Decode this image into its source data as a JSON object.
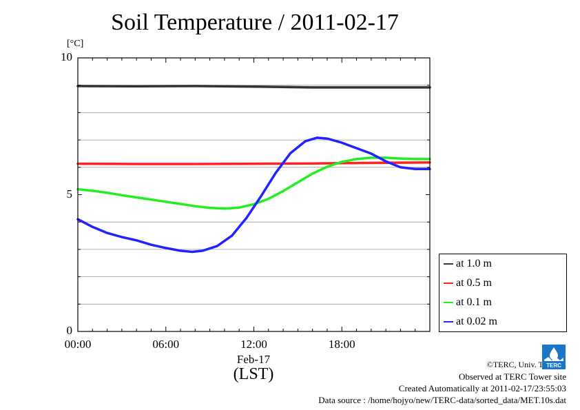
{
  "chart_data": {
    "type": "line",
    "title": "Soil Temperature / 2011-02-17",
    "ylabel": "[°C]",
    "xlabel": "(LST)",
    "x_date_label": "Feb-17",
    "xlim": [
      0,
      24
    ],
    "ylim": [
      0,
      10
    ],
    "y_ticks": [
      {
        "value": 0,
        "label": "0"
      },
      {
        "value": 5,
        "label": "5"
      },
      {
        "value": 10,
        "label": "10"
      }
    ],
    "y_gridlines": [
      1,
      2,
      3,
      4,
      6,
      7,
      8,
      9
    ],
    "x_ticks": [
      {
        "value": 0,
        "label": "00:00"
      },
      {
        "value": 6,
        "label": "06:00"
      },
      {
        "value": 12,
        "label": "12:00"
      },
      {
        "value": 18,
        "label": "18:00"
      }
    ],
    "grid": true,
    "legend_position": "bottom-right",
    "series": [
      {
        "name": "at 1.0 m",
        "color": "#333333",
        "points": [
          [
            0,
            8.97
          ],
          [
            4,
            8.96
          ],
          [
            8,
            8.97
          ],
          [
            12,
            8.95
          ],
          [
            16,
            8.92
          ],
          [
            20,
            8.92
          ],
          [
            24,
            8.92
          ]
        ]
      },
      {
        "name": "at 0.5 m",
        "color": "#ff2020",
        "points": [
          [
            0,
            6.13
          ],
          [
            4,
            6.12
          ],
          [
            8,
            6.12
          ],
          [
            12,
            6.13
          ],
          [
            16,
            6.14
          ],
          [
            20,
            6.16
          ],
          [
            24,
            6.18
          ]
        ]
      },
      {
        "name": "at 0.1 m",
        "color": "#22ee22",
        "points": [
          [
            0,
            5.2
          ],
          [
            1,
            5.14
          ],
          [
            2,
            5.07
          ],
          [
            3,
            4.98
          ],
          [
            4,
            4.9
          ],
          [
            5,
            4.82
          ],
          [
            6,
            4.74
          ],
          [
            7,
            4.66
          ],
          [
            8,
            4.58
          ],
          [
            9,
            4.52
          ],
          [
            10,
            4.49
          ],
          [
            11,
            4.53
          ],
          [
            12,
            4.65
          ],
          [
            13,
            4.85
          ],
          [
            14,
            5.13
          ],
          [
            15,
            5.45
          ],
          [
            16,
            5.77
          ],
          [
            17,
            6.02
          ],
          [
            18,
            6.2
          ],
          [
            19,
            6.3
          ],
          [
            20,
            6.35
          ],
          [
            21,
            6.35
          ],
          [
            22,
            6.32
          ],
          [
            23,
            6.3
          ],
          [
            24,
            6.3
          ]
        ]
      },
      {
        "name": "at 0.02 m",
        "color": "#2222ff",
        "points": [
          [
            0,
            4.1
          ],
          [
            1,
            3.82
          ],
          [
            2,
            3.6
          ],
          [
            3,
            3.45
          ],
          [
            4,
            3.33
          ],
          [
            5,
            3.17
          ],
          [
            6,
            3.05
          ],
          [
            7,
            2.95
          ],
          [
            7.8,
            2.91
          ],
          [
            8.5,
            2.95
          ],
          [
            9.5,
            3.12
          ],
          [
            10.5,
            3.5
          ],
          [
            11.5,
            4.15
          ],
          [
            12.5,
            4.95
          ],
          [
            13.5,
            5.8
          ],
          [
            14.5,
            6.52
          ],
          [
            15.5,
            6.95
          ],
          [
            16.3,
            7.08
          ],
          [
            17,
            7.05
          ],
          [
            18,
            6.9
          ],
          [
            19,
            6.7
          ],
          [
            20,
            6.5
          ],
          [
            21,
            6.22
          ],
          [
            22,
            6.0
          ],
          [
            23,
            5.94
          ],
          [
            24,
            5.94
          ]
        ]
      }
    ]
  },
  "credits": {
    "copyright": "©TERC, Univ. Tsukuba",
    "observed": "Observed at TERC Tower site",
    "created": "Created Automatically at 2011-02-17/23:55:03",
    "source": "Data source : /home/hojyo/new/TERC-data/sorted_data/MET.10s.dat",
    "logo_text": "TERC"
  }
}
